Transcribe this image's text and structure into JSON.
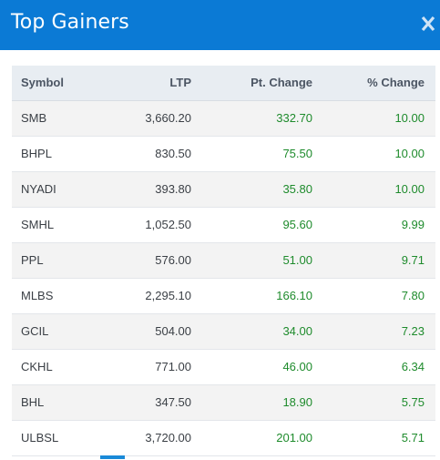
{
  "modal": {
    "title": "Top Gainers",
    "close_icon": "close-icon",
    "header_color": "#0b7ad5"
  },
  "table": {
    "headers": {
      "symbol": "Symbol",
      "ltp": "LTP",
      "pt_change": "Pt. Change",
      "pct_change": "% Change"
    },
    "rows": [
      {
        "symbol": "SMB",
        "ltp": "3,660.20",
        "pt_change": "332.70",
        "pct_change": "10.00"
      },
      {
        "symbol": "BHPL",
        "ltp": "830.50",
        "pt_change": "75.50",
        "pct_change": "10.00"
      },
      {
        "symbol": "NYADI",
        "ltp": "393.80",
        "pt_change": "35.80",
        "pct_change": "10.00"
      },
      {
        "symbol": "SMHL",
        "ltp": "1,052.50",
        "pt_change": "95.60",
        "pct_change": "9.99"
      },
      {
        "symbol": "PPL",
        "ltp": "576.00",
        "pt_change": "51.00",
        "pct_change": "9.71"
      },
      {
        "symbol": "MLBS",
        "ltp": "2,295.10",
        "pt_change": "166.10",
        "pct_change": "7.80"
      },
      {
        "symbol": "GCIL",
        "ltp": "504.00",
        "pt_change": "34.00",
        "pct_change": "7.23"
      },
      {
        "symbol": "CKHL",
        "ltp": "771.00",
        "pt_change": "46.00",
        "pct_change": "6.34"
      },
      {
        "symbol": "BHL",
        "ltp": "347.50",
        "pt_change": "18.90",
        "pct_change": "5.75"
      },
      {
        "symbol": "ULBSL",
        "ltp": "3,720.00",
        "pt_change": "201.00",
        "pct_change": "5.71"
      }
    ],
    "positive_color": "#1e8b2c"
  }
}
